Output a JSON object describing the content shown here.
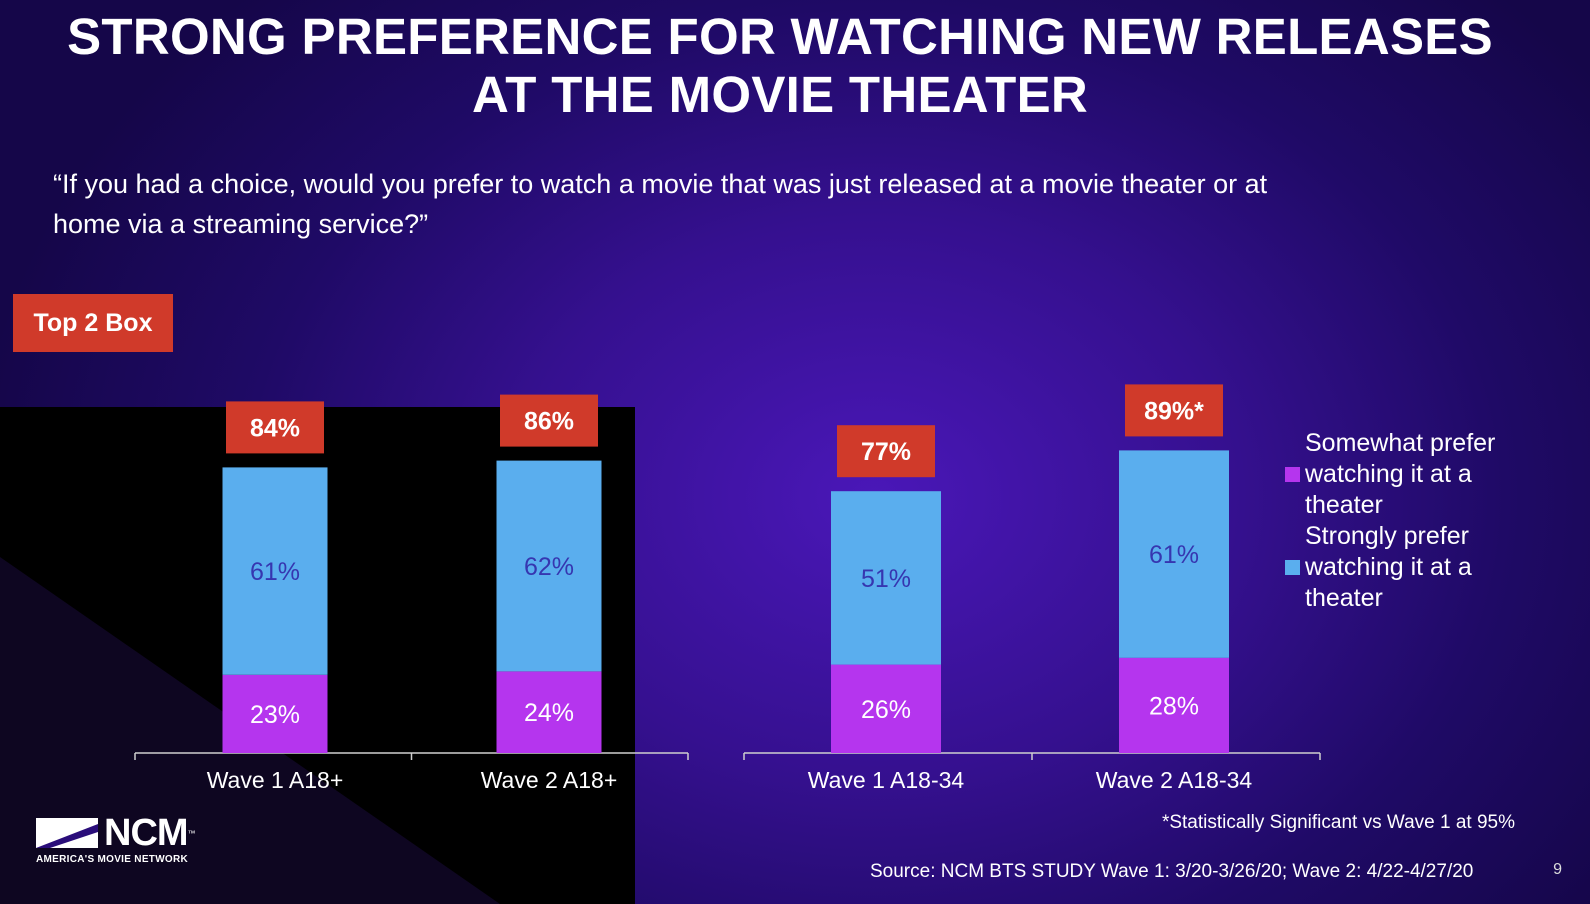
{
  "title_line1": "STRONG PREFERENCE FOR WATCHING NEW RELEASES",
  "title_line2": "AT THE MOVIE THEATER",
  "question_line1": "“If you had a choice, would you prefer to watch a movie that was just released at a movie theater or at",
  "question_line2": "home via a streaming service?”",
  "top2_label": "Top 2 Box",
  "footnote": "*Statistically Significant vs Wave 1 at 95%",
  "source": "Source: NCM BTS STUDY Wave 1:  3/20-3/26/20; Wave 2: 4/22-4/27/20",
  "page_number": "9",
  "logo": {
    "name": "NCM",
    "tagline": "AMERICA'S MOVIE NETWORK"
  },
  "colors": {
    "somewhat": "#b535ee",
    "strongly": "#5aaeee",
    "top2_box": "#d03a2a",
    "label_dark": "#3636b0"
  },
  "chart_data": {
    "type": "bar",
    "stacked": true,
    "categories": [
      "Wave 1 A18+",
      "Wave 2 A18+",
      "Wave 1 A18-34",
      "Wave 2 A18-34"
    ],
    "groups": [
      [
        "Wave 1 A18+",
        "Wave 2 A18+"
      ],
      [
        "Wave 1 A18-34",
        "Wave 2 A18-34"
      ]
    ],
    "series": [
      {
        "name": "Somewhat prefer watching it at a theater",
        "values": [
          23,
          24,
          26,
          28
        ],
        "labels": [
          "23%",
          "24%",
          "26%",
          "28%"
        ]
      },
      {
        "name": "Strongly prefer watching it at a theater",
        "values": [
          61,
          62,
          51,
          61
        ],
        "labels": [
          "61%",
          "62%",
          "51%",
          "61%"
        ]
      }
    ],
    "totals": [
      "84%",
      "86%",
      "77%",
      "89%*"
    ],
    "legend_position": "right"
  }
}
